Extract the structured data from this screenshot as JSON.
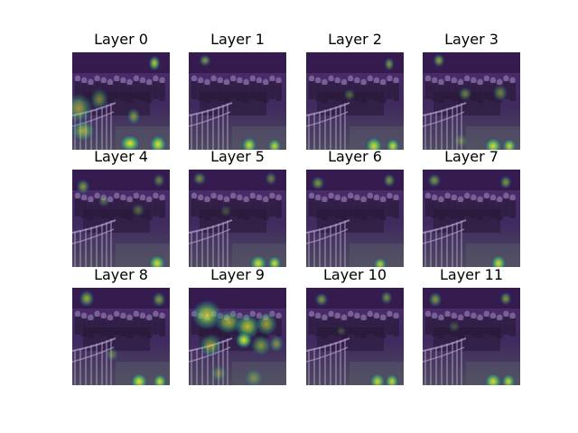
{
  "panels": [
    {
      "title": "Layer 0"
    },
    {
      "title": "Layer 1"
    },
    {
      "title": "Layer 2"
    },
    {
      "title": "Layer 3"
    },
    {
      "title": "Layer 4"
    },
    {
      "title": "Layer 5"
    },
    {
      "title": "Layer 6"
    },
    {
      "title": "Layer 7"
    },
    {
      "title": "Layer 8"
    },
    {
      "title": "Layer 9"
    },
    {
      "title": "Layer 10"
    },
    {
      "title": "Layer 11"
    }
  ],
  "colors": {
    "background": "#ffffff",
    "overlay_dark": "#440154",
    "overlay_mid": "#21918c",
    "overlay_bright": "#fde725",
    "track": "#8b7aa6",
    "rail": "#b49ac9"
  }
}
